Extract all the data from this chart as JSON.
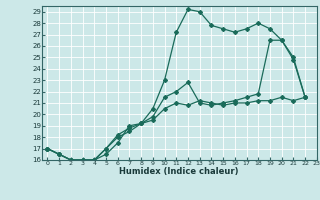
{
  "xlabel": "Humidex (Indice chaleur)",
  "bg_color": "#cce8e8",
  "line_color": "#1a6b5a",
  "grid_color": "#b0d8d8",
  "xlim": [
    -0.5,
    23
  ],
  "ylim": [
    16,
    29.5
  ],
  "xticks": [
    0,
    1,
    2,
    3,
    4,
    5,
    6,
    7,
    8,
    9,
    10,
    11,
    12,
    13,
    14,
    15,
    16,
    17,
    18,
    19,
    20,
    21,
    22,
    23
  ],
  "yticks": [
    16,
    17,
    18,
    19,
    20,
    21,
    22,
    23,
    24,
    25,
    26,
    27,
    28,
    29
  ],
  "line1_x": [
    0,
    1,
    2,
    3,
    4,
    5,
    6,
    7,
    8,
    9,
    10,
    11,
    12,
    13,
    14,
    15,
    16,
    17,
    18,
    19,
    20,
    21,
    22
  ],
  "line1_y": [
    17.0,
    16.5,
    16.0,
    16.0,
    16.0,
    16.5,
    17.5,
    19.0,
    19.2,
    19.5,
    20.5,
    21.0,
    20.8,
    21.2,
    21.0,
    20.8,
    21.0,
    21.0,
    21.2,
    21.2,
    21.5,
    21.2,
    21.5
  ],
  "line2_x": [
    0,
    1,
    2,
    3,
    4,
    5,
    6,
    7,
    8,
    9,
    10,
    11,
    12,
    13,
    14,
    15,
    16,
    17,
    18,
    19,
    20,
    21,
    22
  ],
  "line2_y": [
    17.0,
    16.5,
    16.0,
    16.0,
    16.0,
    17.0,
    18.0,
    18.5,
    19.2,
    20.5,
    23.0,
    27.2,
    29.2,
    29.0,
    27.8,
    27.5,
    27.2,
    27.5,
    28.0,
    27.5,
    26.5,
    24.8,
    21.5
  ],
  "line3_x": [
    0,
    1,
    2,
    3,
    4,
    5,
    6,
    7,
    8,
    9,
    10,
    11,
    12,
    13,
    14,
    15,
    16,
    17,
    18,
    19,
    20,
    21,
    22
  ],
  "line3_y": [
    17.0,
    16.5,
    16.0,
    16.0,
    16.0,
    17.0,
    18.2,
    18.8,
    19.2,
    19.8,
    21.5,
    22.0,
    22.8,
    21.0,
    20.8,
    21.0,
    21.2,
    21.5,
    21.8,
    26.5,
    26.5,
    25.0,
    21.5
  ]
}
